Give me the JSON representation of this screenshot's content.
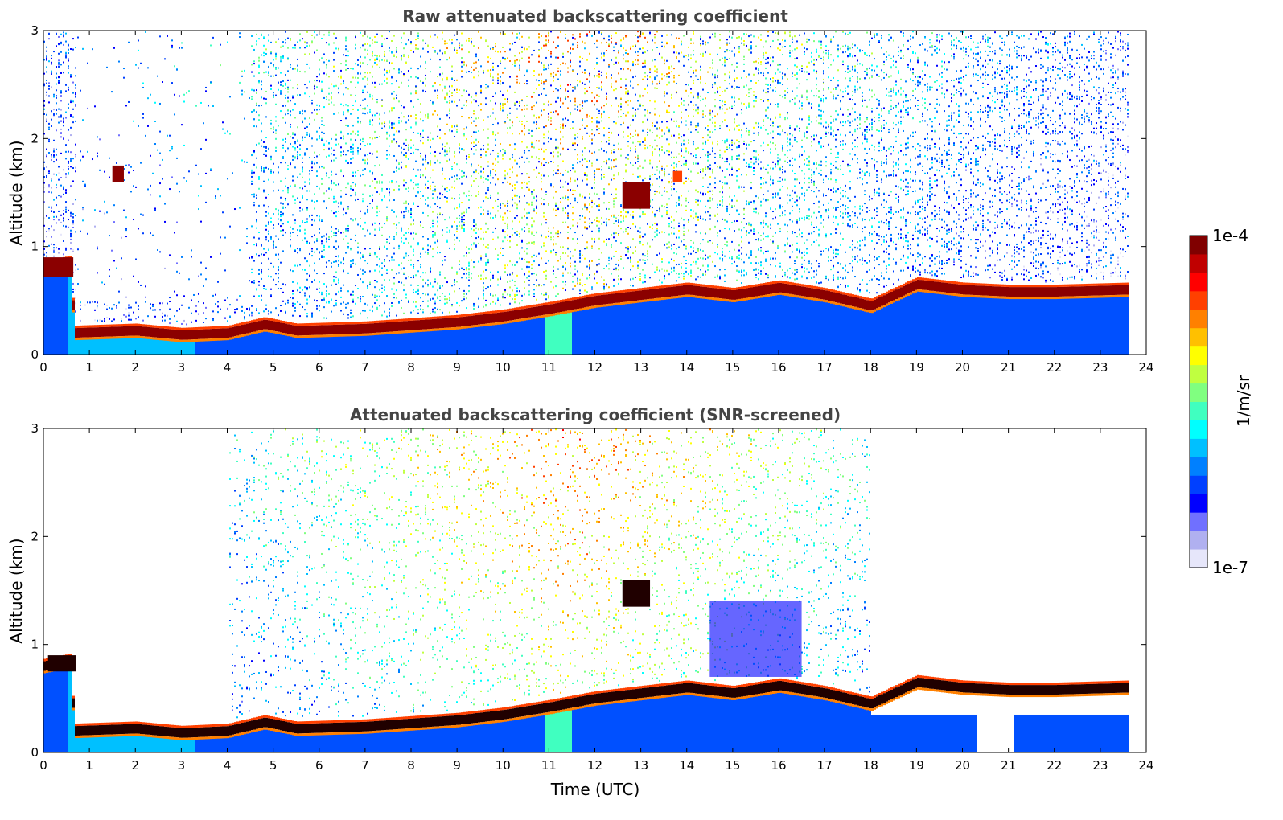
{
  "figure": {
    "colorbar": {
      "label": "1/m/sr",
      "max_label": "1e-4",
      "min_label": "1e-7",
      "colors": [
        "#e6e6fa",
        "#b0b0f0",
        "#7070ff",
        "#0000ff",
        "#0040ff",
        "#0080ff",
        "#00c0ff",
        "#00ffff",
        "#40ffc0",
        "#80ff80",
        "#c0ff40",
        "#ffff00",
        "#ffc000",
        "#ff8000",
        "#ff4000",
        "#ff0000",
        "#c00000",
        "#800000"
      ]
    },
    "xlabel": "Time (UTC)"
  },
  "chart_data": [
    {
      "type": "heatmap",
      "title": "Raw attenuated backscattering coefficient",
      "xlabel": "",
      "ylabel": "Altitude (km)",
      "xlim": [
        0,
        24
      ],
      "ylim": [
        0,
        3
      ],
      "xticks": [
        "0",
        "1",
        "2",
        "3",
        "4",
        "5",
        "6",
        "7",
        "8",
        "9",
        "10",
        "11",
        "12",
        "13",
        "14",
        "15",
        "16",
        "17",
        "18",
        "19",
        "20",
        "21",
        "22",
        "23",
        "24"
      ],
      "yticks": [
        "0",
        "1",
        "2",
        "3"
      ],
      "data_end_hour": 23.65,
      "layer_top_km": [
        [
          0,
          0.8
        ],
        [
          0.6,
          0.85
        ],
        [
          0.65,
          0.2
        ],
        [
          2,
          0.22
        ],
        [
          3,
          0.18
        ],
        [
          4,
          0.2
        ],
        [
          4.8,
          0.28
        ],
        [
          5.5,
          0.22
        ],
        [
          7,
          0.24
        ],
        [
          9,
          0.3
        ],
        [
          10,
          0.35
        ],
        [
          11,
          0.42
        ],
        [
          12,
          0.5
        ],
        [
          13,
          0.55
        ],
        [
          14,
          0.6
        ],
        [
          15,
          0.55
        ],
        [
          16,
          0.62
        ],
        [
          17,
          0.55
        ],
        [
          18,
          0.45
        ],
        [
          18.5,
          0.55
        ],
        [
          19,
          0.65
        ],
        [
          20,
          0.6
        ],
        [
          21,
          0.58
        ],
        [
          22,
          0.58
        ],
        [
          23.65,
          0.6
        ]
      ],
      "features": [
        {
          "time": [
            12.6,
            13.2
          ],
          "alt": [
            1.35,
            1.6
          ],
          "level": "high"
        },
        {
          "time": [
            1.5,
            1.75
          ],
          "alt": [
            1.6,
            1.75
          ],
          "level": "high"
        },
        {
          "time": [
            13.7,
            13.9
          ],
          "alt": [
            1.6,
            1.7
          ],
          "level": "mid"
        }
      ]
    },
    {
      "type": "heatmap",
      "title": "Attenuated backscattering coefficient (SNR-screened)",
      "xlabel": "Time (UTC)",
      "ylabel": "Altitude (km)",
      "xlim": [
        0,
        24
      ],
      "ylim": [
        0,
        3
      ],
      "xticks": [
        "0",
        "1",
        "2",
        "3",
        "4",
        "5",
        "6",
        "7",
        "8",
        "9",
        "10",
        "11",
        "12",
        "13",
        "14",
        "15",
        "16",
        "17",
        "18",
        "19",
        "20",
        "21",
        "22",
        "23",
        "24"
      ],
      "yticks": [
        "0",
        "1",
        "2",
        "3"
      ],
      "data_end_hour": 23.65,
      "screened_upper_region_hours": [
        4,
        18
      ],
      "features": [
        {
          "time": [
            12.6,
            13.2
          ],
          "alt": [
            1.35,
            1.6
          ],
          "level": "high"
        },
        {
          "time": [
            0.1,
            0.7
          ],
          "alt": [
            0.75,
            0.9
          ],
          "level": "high"
        },
        {
          "time": [
            14.5,
            16.5
          ],
          "alt": [
            0.7,
            1.4
          ],
          "level": "low"
        }
      ]
    }
  ]
}
